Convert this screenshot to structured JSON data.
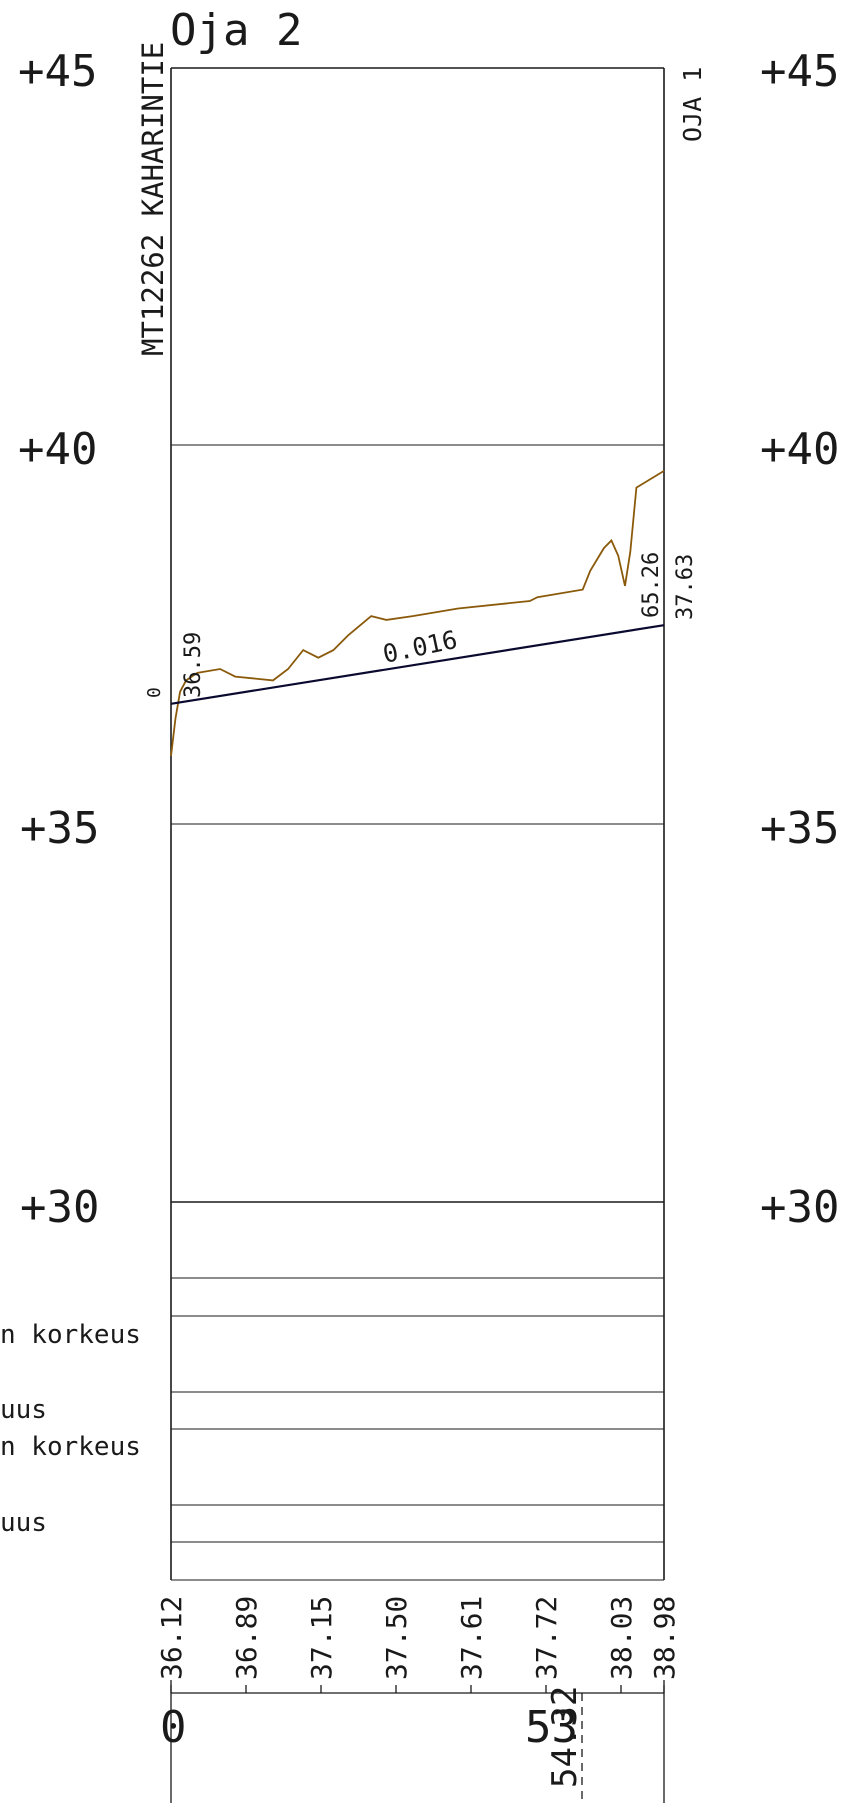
{
  "title": "Oja 2",
  "elevation_labels": [
    "+45",
    "+40",
    "+35",
    "+30"
  ],
  "left_vertical_label": "MT12262 KAHARINTIE",
  "right_vertical_label": "OJA 1",
  "slope_label": "0.016",
  "start_annotation": {
    "station": "0",
    "elevation": "36.59"
  },
  "end_annotation": {
    "station": "65.26",
    "elevation": "37.63"
  },
  "row_labels": [
    "n korkeus",
    "uus",
    "n korkeus",
    "uus"
  ],
  "bottom_elevations": [
    "36.12",
    "36.89",
    "37.15",
    "37.50",
    "37.61",
    "37.72",
    "38.03",
    "38.98"
  ],
  "station_start": "0",
  "station_marker_main": "53",
  "station_marker_sub": "54.32",
  "colors": {
    "line": "#1a1a1a",
    "ground": "#8a5a0a",
    "design": "#0a0a30"
  },
  "chart_data": {
    "type": "line",
    "title": "Oja 2",
    "xlabel": "",
    "ylabel": "",
    "xlim": [
      0,
      65.26
    ],
    "ylim": [
      30,
      45
    ],
    "y_ticks": [
      45,
      40,
      35,
      30
    ],
    "grid": true,
    "series": [
      {
        "values": [
          [
            0,
            35.9
          ],
          [
            0.6,
            36.4
          ],
          [
            1.2,
            36.75
          ],
          [
            2.0,
            36.9
          ],
          [
            3.5,
            37.0
          ],
          [
            6.5,
            37.05
          ],
          [
            8.5,
            36.95
          ],
          [
            13.5,
            36.9
          ],
          [
            15.5,
            37.05
          ],
          [
            17.5,
            37.3
          ],
          [
            19.5,
            37.2
          ],
          [
            21.5,
            37.3
          ],
          [
            23.5,
            37.5
          ],
          [
            26.5,
            37.75
          ],
          [
            28.5,
            37.7
          ],
          [
            32.0,
            37.75
          ],
          [
            38.0,
            37.85
          ],
          [
            47.5,
            37.95
          ],
          [
            48.5,
            38.0
          ],
          [
            54.5,
            38.1
          ],
          [
            55.5,
            38.35
          ],
          [
            57.3,
            38.65
          ],
          [
            58.3,
            38.75
          ],
          [
            59.2,
            38.55
          ],
          [
            60.1,
            38.15
          ],
          [
            60.8,
            38.6
          ],
          [
            61.6,
            39.45
          ],
          [
            65.26,
            39.67
          ]
        ]
      },
      {
        "values": [
          [
            0,
            36.59
          ],
          [
            65.26,
            37.63
          ]
        ]
      }
    ]
  }
}
